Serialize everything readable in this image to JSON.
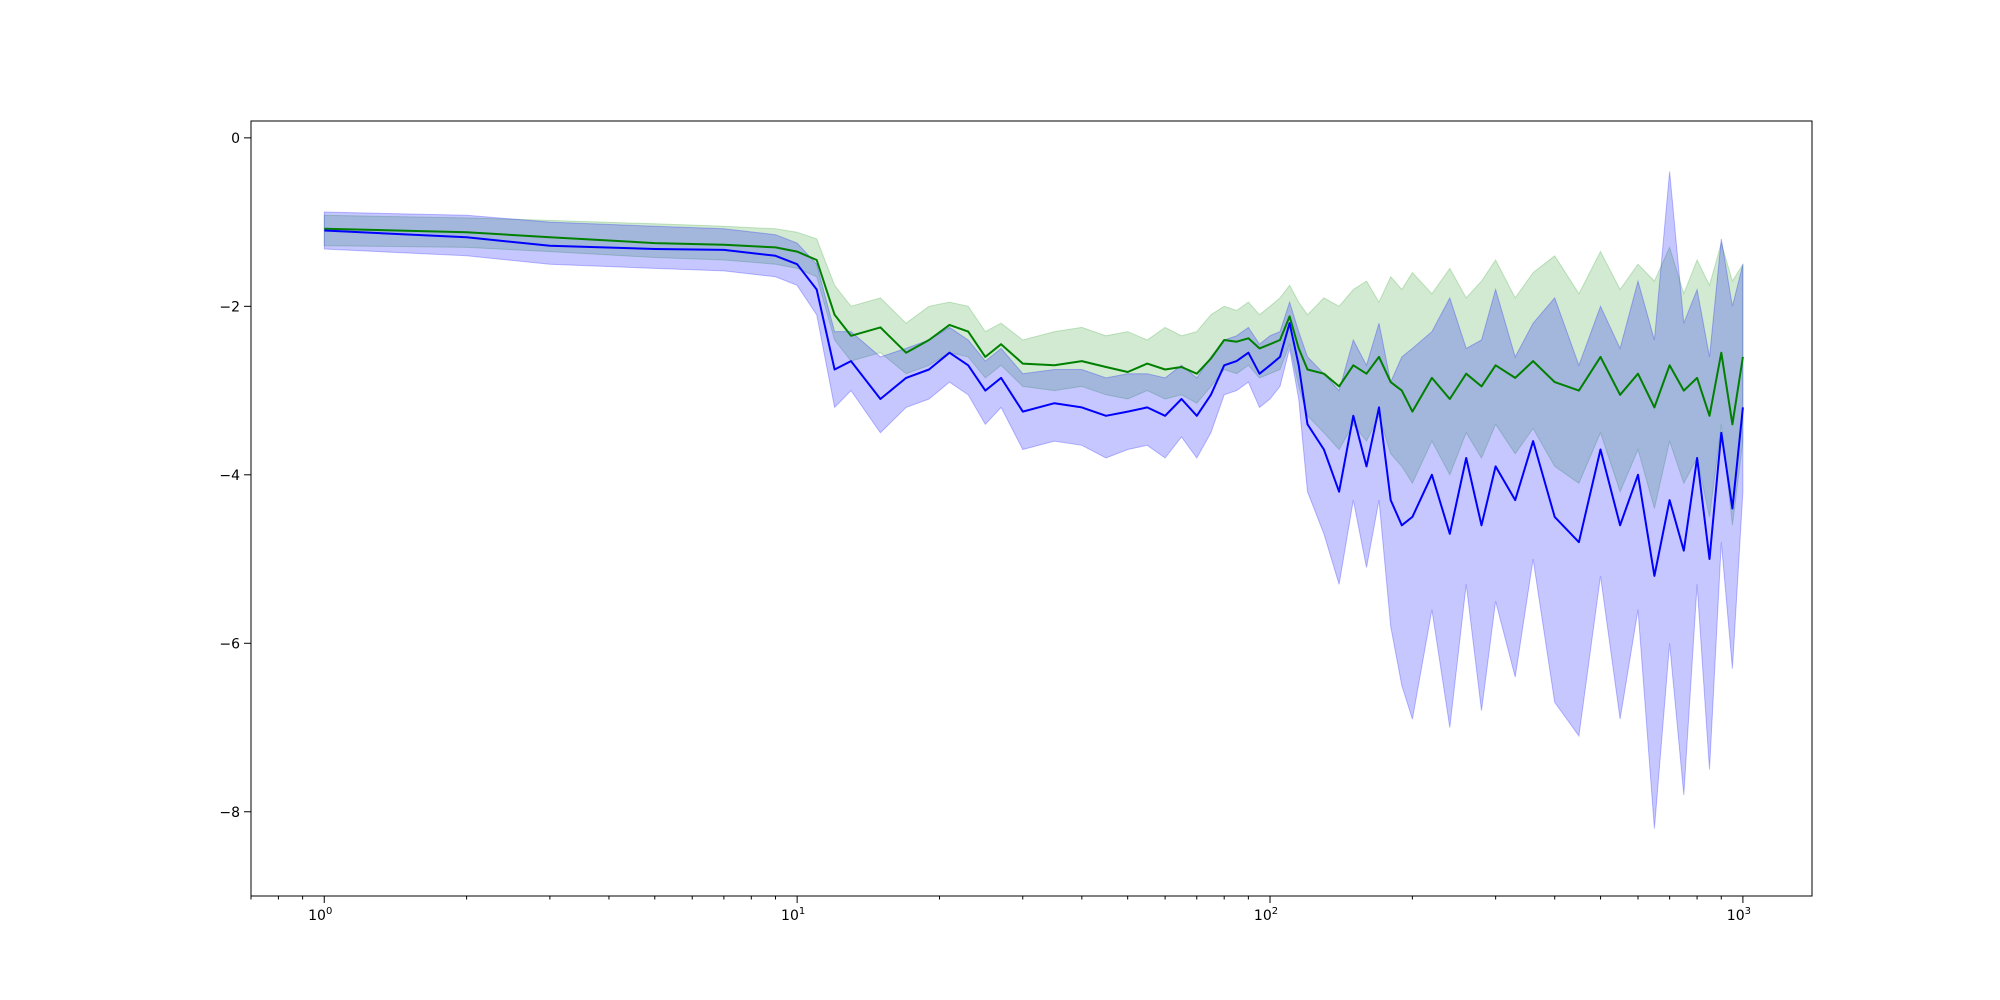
{
  "chart_data": {
    "type": "line",
    "title": "",
    "xlabel": "",
    "ylabel": "",
    "x_scale": "log",
    "xlim": [
      0.7,
      1400
    ],
    "ylim": [
      -9,
      0.2
    ],
    "grid": false,
    "legend": "none",
    "x_ticks": [
      {
        "value": 1,
        "base": "10",
        "exp": "0"
      },
      {
        "value": 10,
        "base": "10",
        "exp": "1"
      },
      {
        "value": 100,
        "base": "10",
        "exp": "2"
      },
      {
        "value": 1000,
        "base": "10",
        "exp": "3"
      }
    ],
    "y_ticks": [
      {
        "value": 0,
        "label": "0"
      },
      {
        "value": -2,
        "label": "−2"
      },
      {
        "value": -4,
        "label": "−4"
      },
      {
        "value": -6,
        "label": "−6"
      },
      {
        "value": -8,
        "label": "−8"
      }
    ],
    "series": [
      {
        "color": "#008000",
        "band_color": "#2ca02c",
        "x": [
          1,
          2,
          3,
          5,
          7,
          9,
          10,
          11,
          12,
          13,
          15,
          17,
          19,
          21,
          23,
          25,
          27,
          30,
          35,
          40,
          45,
          50,
          55,
          60,
          65,
          70,
          75,
          80,
          85,
          90,
          95,
          100,
          105,
          110,
          115,
          120,
          130,
          140,
          150,
          160,
          170,
          180,
          190,
          200,
          220,
          240,
          260,
          280,
          300,
          330,
          360,
          400,
          450,
          500,
          550,
          600,
          650,
          700,
          750,
          800,
          850,
          900,
          950,
          1000
        ],
        "y": [
          -1.08,
          -1.12,
          -1.18,
          -1.25,
          -1.27,
          -1.3,
          -1.35,
          -1.45,
          -2.1,
          -2.35,
          -2.25,
          -2.55,
          -2.4,
          -2.22,
          -2.3,
          -2.6,
          -2.45,
          -2.68,
          -2.7,
          -2.65,
          -2.72,
          -2.78,
          -2.68,
          -2.75,
          -2.72,
          -2.8,
          -2.62,
          -2.4,
          -2.42,
          -2.38,
          -2.5,
          -2.45,
          -2.4,
          -2.12,
          -2.5,
          -2.75,
          -2.8,
          -2.95,
          -2.7,
          -2.8,
          -2.6,
          -2.9,
          -3.0,
          -3.25,
          -2.85,
          -3.1,
          -2.8,
          -2.95,
          -2.7,
          -2.85,
          -2.65,
          -2.9,
          -3.0,
          -2.6,
          -3.05,
          -2.8,
          -3.2,
          -2.7,
          -3.0,
          -2.85,
          -3.3,
          -2.55,
          -3.4,
          -2.6
        ],
        "upper": [
          -0.92,
          -0.95,
          -0.98,
          -1.02,
          -1.05,
          -1.08,
          -1.12,
          -1.2,
          -1.75,
          -2.0,
          -1.9,
          -2.2,
          -2.0,
          -1.95,
          -2.0,
          -2.3,
          -2.2,
          -2.4,
          -2.3,
          -2.25,
          -2.35,
          -2.3,
          -2.4,
          -2.25,
          -2.35,
          -2.3,
          -2.1,
          -2.0,
          -2.05,
          -1.95,
          -2.1,
          -2.0,
          -1.9,
          -1.75,
          -1.95,
          -2.1,
          -1.9,
          -2.0,
          -1.8,
          -1.7,
          -1.95,
          -1.65,
          -1.8,
          -1.6,
          -1.85,
          -1.55,
          -1.9,
          -1.7,
          -1.45,
          -1.9,
          -1.6,
          -1.4,
          -1.85,
          -1.35,
          -1.8,
          -1.5,
          -1.7,
          -1.3,
          -1.85,
          -1.45,
          -1.75,
          -1.25,
          -1.7,
          -1.5
        ],
        "lower": [
          -1.28,
          -1.3,
          -1.35,
          -1.42,
          -1.45,
          -1.5,
          -1.55,
          -1.65,
          -2.4,
          -2.65,
          -2.55,
          -2.8,
          -2.7,
          -2.55,
          -2.6,
          -2.85,
          -2.7,
          -2.95,
          -3.0,
          -2.95,
          -3.05,
          -3.1,
          -3.0,
          -3.1,
          -3.05,
          -3.15,
          -2.95,
          -2.75,
          -2.8,
          -2.7,
          -2.85,
          -2.8,
          -2.75,
          -2.45,
          -2.95,
          -3.3,
          -3.5,
          -3.7,
          -3.4,
          -3.6,
          -3.3,
          -3.75,
          -3.9,
          -4.1,
          -3.6,
          -4.0,
          -3.5,
          -3.8,
          -3.4,
          -3.75,
          -3.45,
          -3.9,
          -4.1,
          -3.5,
          -4.2,
          -3.7,
          -4.4,
          -3.6,
          -4.1,
          -3.8,
          -4.5,
          -3.4,
          -4.6,
          -3.6
        ]
      },
      {
        "color": "#0000ff",
        "band_color": "#0000ff",
        "x": [
          1,
          2,
          3,
          5,
          7,
          9,
          10,
          11,
          12,
          13,
          15,
          17,
          19,
          21,
          23,
          25,
          27,
          30,
          35,
          40,
          45,
          50,
          55,
          60,
          65,
          70,
          75,
          80,
          85,
          90,
          95,
          100,
          105,
          110,
          115,
          120,
          130,
          140,
          150,
          160,
          170,
          180,
          190,
          200,
          220,
          240,
          260,
          280,
          300,
          330,
          360,
          400,
          450,
          500,
          550,
          600,
          650,
          700,
          750,
          800,
          850,
          900,
          950,
          1000
        ],
        "y": [
          -1.1,
          -1.18,
          -1.28,
          -1.32,
          -1.33,
          -1.4,
          -1.5,
          -1.8,
          -2.75,
          -2.65,
          -3.1,
          -2.85,
          -2.75,
          -2.55,
          -2.7,
          -3.0,
          -2.85,
          -3.25,
          -3.15,
          -3.2,
          -3.3,
          -3.25,
          -3.2,
          -3.3,
          -3.1,
          -3.3,
          -3.05,
          -2.7,
          -2.65,
          -2.55,
          -2.8,
          -2.7,
          -2.6,
          -2.2,
          -2.7,
          -3.4,
          -3.7,
          -4.2,
          -3.3,
          -3.9,
          -3.2,
          -4.3,
          -4.6,
          -4.5,
          -4.0,
          -4.7,
          -3.8,
          -4.6,
          -3.9,
          -4.3,
          -3.6,
          -4.5,
          -4.8,
          -3.7,
          -4.6,
          -4.0,
          -5.2,
          -4.3,
          -4.9,
          -3.8,
          -5.0,
          -3.5,
          -4.4,
          -3.2
        ],
        "upper": [
          -0.88,
          -0.92,
          -1.0,
          -1.05,
          -1.08,
          -1.15,
          -1.25,
          -1.5,
          -2.3,
          -2.3,
          -2.6,
          -2.5,
          -2.4,
          -2.25,
          -2.4,
          -2.65,
          -2.5,
          -2.8,
          -2.75,
          -2.75,
          -2.85,
          -2.8,
          -2.8,
          -2.85,
          -2.7,
          -2.85,
          -2.6,
          -2.4,
          -2.35,
          -2.25,
          -2.45,
          -2.35,
          -2.3,
          -1.95,
          -2.3,
          -2.6,
          -2.8,
          -3.0,
          -2.4,
          -2.7,
          -2.2,
          -2.9,
          -2.6,
          -2.5,
          -2.3,
          -1.9,
          -2.5,
          -2.4,
          -1.8,
          -2.6,
          -2.2,
          -1.9,
          -2.7,
          -2.0,
          -2.5,
          -1.7,
          -2.4,
          -0.4,
          -2.2,
          -1.8,
          -2.6,
          -1.2,
          -2.0,
          -1.5
        ],
        "lower": [
          -1.32,
          -1.4,
          -1.5,
          -1.55,
          -1.58,
          -1.65,
          -1.75,
          -2.1,
          -3.2,
          -3.0,
          -3.5,
          -3.2,
          -3.1,
          -2.9,
          -3.05,
          -3.4,
          -3.2,
          -3.7,
          -3.6,
          -3.65,
          -3.8,
          -3.7,
          -3.65,
          -3.8,
          -3.55,
          -3.8,
          -3.5,
          -3.05,
          -3.0,
          -2.9,
          -3.2,
          -3.1,
          -2.95,
          -2.5,
          -3.1,
          -4.2,
          -4.7,
          -5.3,
          -4.3,
          -5.1,
          -4.3,
          -5.8,
          -6.5,
          -6.9,
          -5.6,
          -7.0,
          -5.3,
          -6.8,
          -5.5,
          -6.4,
          -5.0,
          -6.7,
          -7.1,
          -5.2,
          -6.9,
          -5.6,
          -8.2,
          -6.0,
          -7.8,
          -5.3,
          -7.5,
          -4.8,
          -6.3,
          -4.2
        ]
      }
    ]
  }
}
